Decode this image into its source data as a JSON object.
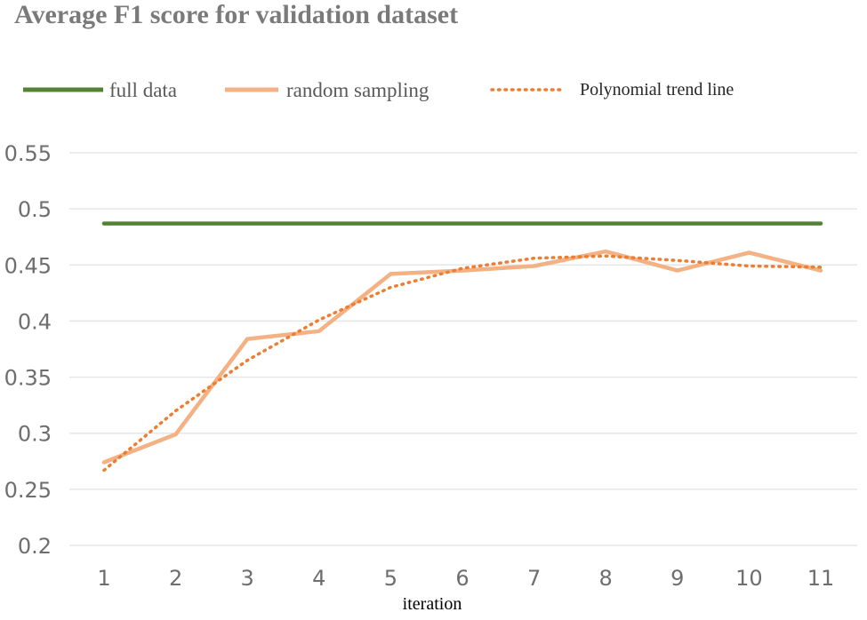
{
  "chart_data": {
    "type": "line",
    "title": "Average F1 score for validation dataset",
    "xlabel": "iteration",
    "ylabel": "",
    "categories": [
      "1",
      "2",
      "3",
      "4",
      "5",
      "6",
      "7",
      "8",
      "9",
      "10",
      "11"
    ],
    "y_ticks": [
      "0.2",
      "0.25",
      "0.3",
      "0.35",
      "0.4",
      "0.45",
      "0.5",
      "0.55"
    ],
    "ylim": [
      0.2,
      0.55
    ],
    "grid": true,
    "legend_position": "top",
    "series": [
      {
        "name": "full data",
        "color": "#548235",
        "style": "solid",
        "values": [
          0.487,
          0.487,
          0.487,
          0.487,
          0.487,
          0.487,
          0.487,
          0.487,
          0.487,
          0.487,
          0.487
        ]
      },
      {
        "name": "random sampling",
        "color": "#f4b183",
        "style": "solid",
        "values": [
          0.274,
          0.299,
          0.384,
          0.391,
          0.442,
          0.445,
          0.449,
          0.462,
          0.445,
          0.461,
          0.445
        ]
      },
      {
        "name": "Polynomial trend line",
        "color": "#ed7d31",
        "style": "dotted",
        "values": [
          0.267,
          0.32,
          0.365,
          0.401,
          0.43,
          0.447,
          0.456,
          0.458,
          0.454,
          0.449,
          0.448
        ]
      }
    ]
  }
}
